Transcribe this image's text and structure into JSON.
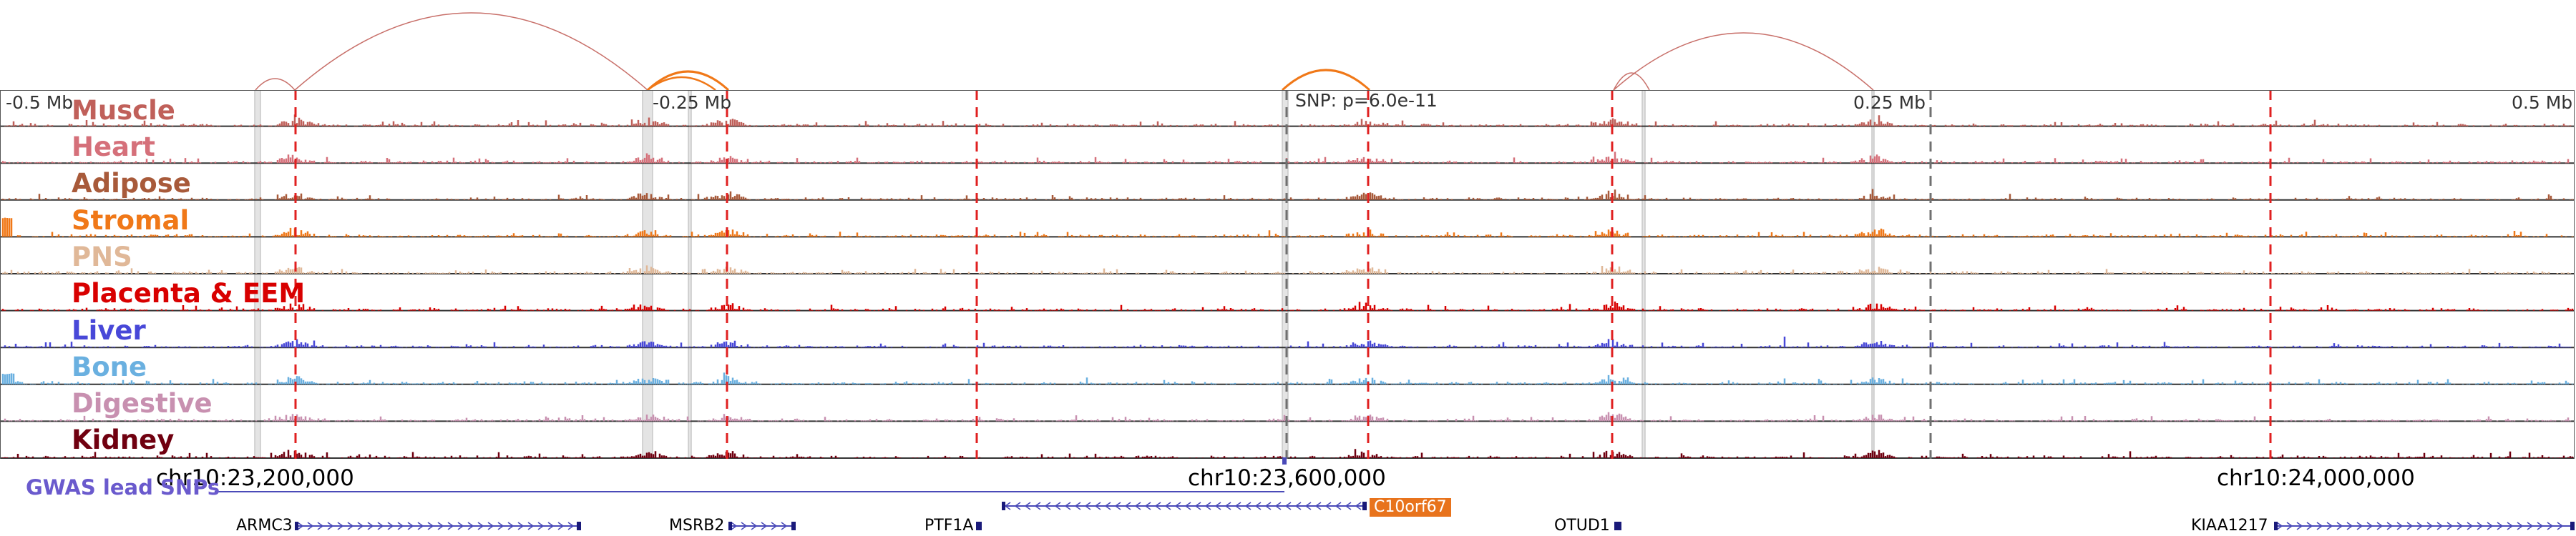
{
  "scale": {
    "left": "-0.5 Mb",
    "center_left": "-0.25 Mb",
    "snp": "SNP: p=6.0e-11",
    "center_right": "0.25 Mb",
    "right": "0.5 Mb"
  },
  "tracks": [
    {
      "name": "Muscle",
      "color": "#c0605a"
    },
    {
      "name": "Heart",
      "color": "#d5707a"
    },
    {
      "name": "Adipose",
      "color": "#a85a3a"
    },
    {
      "name": "Stromal",
      "color": "#f07818"
    },
    {
      "name": "PNS",
      "color": "#e0b898"
    },
    {
      "name": "Placenta & EEM",
      "color": "#d80000"
    },
    {
      "name": "Liver",
      "color": "#4848d8"
    },
    {
      "name": "Bone",
      "color": "#6ab0e0"
    },
    {
      "name": "Digestive",
      "color": "#c890b0"
    },
    {
      "name": "Kidney",
      "color": "#700010"
    }
  ],
  "coordinates": {
    "c1": "chr10:23,200,000",
    "c2": "chr10:23,600,000",
    "c3": "chr10:24,000,000"
  },
  "gwas": {
    "label": "GWAS lead SNPs"
  },
  "genes": {
    "armc3": "ARMC3",
    "msrb2": "MSRB2",
    "ptf1a": "PTF1A",
    "c10orf67": "C10orf67",
    "otud1": "OTUD1",
    "kiaa1217": "KIAA1217"
  },
  "colors": {
    "link_arc": "#c8706a",
    "link_arc_strong": "#f07818",
    "red_marker": "#e02020",
    "gray_marker": "#707070",
    "gene_line": "#4a4ab8",
    "gene_highlight": "#e8731c",
    "frame": "#555555"
  }
}
